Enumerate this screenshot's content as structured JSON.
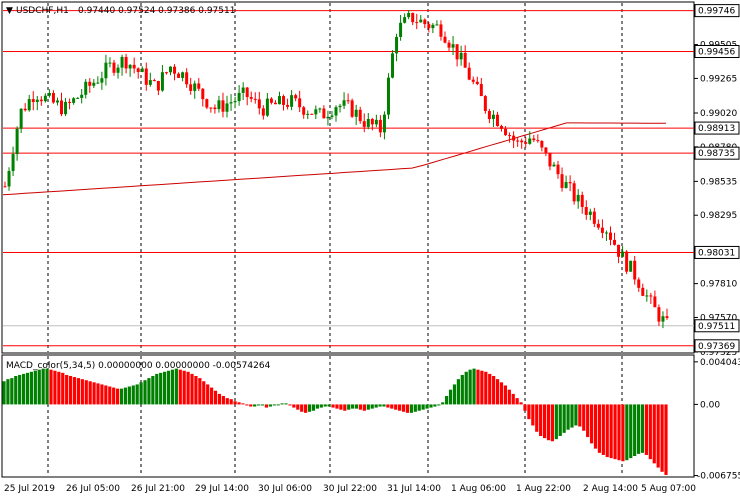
{
  "header": {
    "symbol_label": "USDCHF,H1",
    "ohlc_text": "0.97440 0.97524 0.97386 0.97511"
  },
  "macd": {
    "label": "MACD_color(5,34,5) 0.00000000 0.00000000 -0.00574264"
  },
  "colors": {
    "bull": "#008000",
    "bear": "#ff0000",
    "ma": "#cc0000",
    "level_line": "#ff0000",
    "grid": "#000000",
    "background": "#ffffff"
  },
  "chart_data": [
    {
      "type": "candlestick",
      "title": "USDCHF,H1",
      "ylim": [
        0.97325,
        0.998
      ],
      "y_ticks": [
        "0.99505",
        "0.99265",
        "0.99020",
        "0.98780",
        "0.98535",
        "0.98295",
        "0.97810",
        "0.97570",
        "0.97325"
      ],
      "levels": [
        {
          "label": "0.99746",
          "value": 0.99746
        },
        {
          "label": "0.99456",
          "value": 0.99456
        },
        {
          "label": "0.98913",
          "value": 0.98913
        },
        {
          "label": "0.98735",
          "value": 0.98735
        },
        {
          "label": "0.98031",
          "value": 0.98031
        },
        {
          "label": "0.97369",
          "value": 0.97369
        }
      ],
      "current_price": {
        "label": "0.97511",
        "value": 0.97511
      },
      "x_labels": [
        "25 Jul 2019",
        "26 Jul 05:00",
        "26 Jul 21:00",
        "29 Jul 14:00",
        "30 Jul 06:00",
        "30 Jul 22:00",
        "31 Jul 14:00",
        "1 Aug 06:00",
        "1 Aug 22:00",
        "2 Aug 14:00",
        "5 Aug 07:00"
      ],
      "moving_average": {
        "start": 0.9844,
        "mid": 0.9863,
        "end": 0.9893
      },
      "close_path": [
        0.985,
        0.9902,
        0.9917,
        0.991,
        0.9905,
        0.9915,
        0.9925,
        0.9935,
        0.994,
        0.993,
        0.992,
        0.9935,
        0.9928,
        0.9915,
        0.9905,
        0.991,
        0.9915,
        0.9905,
        0.9908,
        0.991,
        0.9905,
        0.99,
        0.9908,
        0.9905,
        0.9895,
        0.989,
        0.996,
        0.997,
        0.9965,
        0.9962,
        0.9945,
        0.9925,
        0.9905,
        0.9895,
        0.988,
        0.9885,
        0.987,
        0.9855,
        0.984,
        0.983,
        0.982,
        0.98,
        0.9785,
        0.9765,
        0.9751
      ]
    },
    {
      "type": "bar",
      "title": "MACD_color(5,34,5)",
      "ylim": [
        -0.0068,
        0.0046
      ],
      "y_ticks": [
        "0.0040438",
        "0.00",
        "-0.0067559"
      ],
      "values": [
        0.0022,
        0.0024,
        0.0025,
        0.0027,
        0.0028,
        0.0029,
        0.003,
        0.0031,
        0.0032,
        0.0033,
        0.0034,
        0.0034,
        0.0033,
        0.0032,
        0.0031,
        0.003,
        0.0028,
        0.0027,
        0.0026,
        0.0025,
        0.0024,
        0.0023,
        0.0022,
        0.0021,
        0.002,
        0.0019,
        0.0018,
        0.0017,
        0.0016,
        0.0015,
        0.0015,
        0.0016,
        0.0017,
        0.0018,
        0.0019,
        0.0021,
        0.0023,
        0.0025,
        0.0027,
        0.0029,
        0.003,
        0.0031,
        0.0032,
        0.0033,
        0.0034,
        0.0033,
        0.0032,
        0.0031,
        0.0029,
        0.0027,
        0.0025,
        0.0022,
        0.0019,
        0.0016,
        0.0013,
        0.001,
        0.0008,
        0.0006,
        0.0005,
        0.0003,
        0.0002,
        0.0001,
        -0.0001,
        -0.0002,
        -0.0002,
        -0.0001,
        -0.0001,
        -0.0003,
        -0.0002,
        -0.0001,
        0.0,
        0.0001,
        0.0001,
        -0.0001,
        -0.0003,
        -0.0005,
        -0.0007,
        -0.0008,
        -0.0007,
        -0.0006,
        -0.0004,
        -0.0003,
        -0.0002,
        -0.0002,
        -0.0003,
        -0.0004,
        -0.0005,
        -0.0006,
        -0.0005,
        -0.0004,
        -0.0004,
        -0.0005,
        -0.0006,
        -0.0005,
        -0.0004,
        -0.0003,
        -0.0002,
        -0.0002,
        -0.0003,
        -0.0004,
        -0.0005,
        -0.0006,
        -0.0007,
        -0.0008,
        -0.0008,
        -0.0007,
        -0.0006,
        -0.0005,
        -0.0004,
        -0.0003,
        -0.0002,
        -0.0001,
        0.0002,
        0.0008,
        0.0014,
        0.0019,
        0.0024,
        0.0028,
        0.0031,
        0.0033,
        0.0034,
        0.0033,
        0.0032,
        0.0031,
        0.0029,
        0.0027,
        0.0024,
        0.0021,
        0.0018,
        0.0014,
        0.001,
        0.0006,
        0.0002,
        -0.0006,
        -0.0014,
        -0.002,
        -0.0026,
        -0.003,
        -0.0032,
        -0.0034,
        -0.0035,
        -0.0033,
        -0.003,
        -0.0027,
        -0.0024,
        -0.0022,
        -0.002,
        -0.0021,
        -0.0025,
        -0.0031,
        -0.0037,
        -0.0042,
        -0.0046,
        -0.0048,
        -0.005,
        -0.0051,
        -0.0052,
        -0.0053,
        -0.0054,
        -0.0053,
        -0.0051,
        -0.0049,
        -0.0047,
        -0.0046,
        -0.0048,
        -0.0052,
        -0.0056,
        -0.006,
        -0.0064,
        -0.0067
      ]
    }
  ]
}
